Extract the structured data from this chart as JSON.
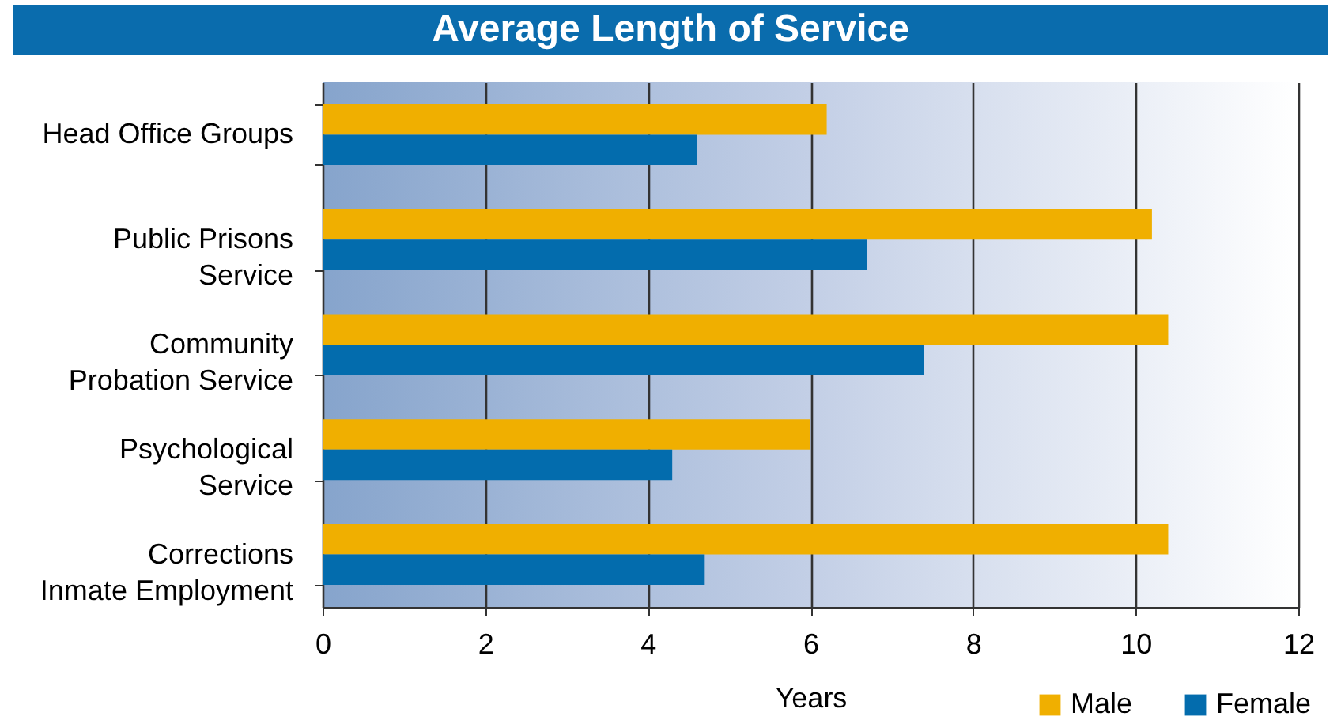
{
  "chart_data": {
    "type": "bar",
    "orientation": "horizontal",
    "title": "Average Length of Service",
    "xlabel": "Years",
    "categories": [
      "Head Office Groups",
      "Public Prisons Service",
      "Community Probation Service",
      "Psychological Service",
      "Corrections Inmate Employment"
    ],
    "series": [
      {
        "name": "Male",
        "color": "#f0af00",
        "values": [
          6.2,
          10.2,
          10.4,
          6.0,
          10.4
        ]
      },
      {
        "name": "Female",
        "color": "#036cad",
        "values": [
          4.6,
          6.7,
          7.4,
          4.3,
          4.7
        ]
      }
    ],
    "xlim": [
      0,
      12
    ],
    "xticks": [
      0,
      2,
      4,
      6,
      8,
      10,
      12
    ],
    "grid": "x",
    "legend": "bottom right"
  }
}
